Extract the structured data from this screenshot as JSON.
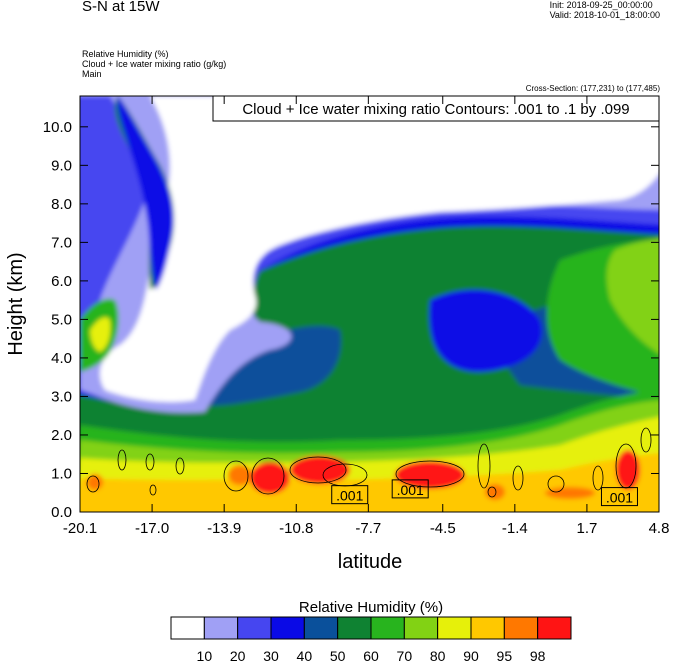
{
  "header": {
    "title": "S-N at 15W",
    "init": "Init: 2018-09-25_00:00:00",
    "valid": "Valid: 2018-10-01_18:00:00",
    "field1": "Relative Humidity   (%)",
    "field2": "Cloud + Ice water mixing ratio   (g/kg)",
    "field3": "Main",
    "cross_section": "Cross-Section: (177,231) to (177,485)"
  },
  "chart_data": {
    "type": "heatmap",
    "title": "Cloud + Ice water mixing ratio Contours: .001 to .1 by .099",
    "xlabel": "latitude",
    "ylabel": "Height (km)",
    "x_ticks": [
      "-20.1",
      "-17.0",
      "-13.9",
      "-10.8",
      "-7.7",
      "-4.5",
      "-1.4",
      "1.7",
      "4.8"
    ],
    "x_tick_values": [
      -20.1,
      -17.0,
      -13.9,
      -10.8,
      -7.7,
      -4.5,
      -1.4,
      1.7,
      4.8
    ],
    "y_ticks": [
      "0.0",
      "1.0",
      "2.0",
      "3.0",
      "4.0",
      "5.0",
      "6.0",
      "7.0",
      "8.0",
      "9.0",
      "10.0"
    ],
    "y_tick_values": [
      0,
      1,
      2,
      3,
      4,
      5,
      6,
      7,
      8,
      9,
      10
    ],
    "xlim": [
      -20.1,
      4.8
    ],
    "ylim": [
      0,
      10.8
    ],
    "contour_labels": [
      {
        "text": ".001",
        "x": -8.5,
        "y": 0.45
      },
      {
        "text": ".001",
        "x": -5.9,
        "y": 0.6
      },
      {
        "text": ".001",
        "x": 3.1,
        "y": 0.4
      }
    ],
    "colorbar": {
      "title": "Relative Humidity  (%)",
      "labels": [
        "10",
        "20",
        "30",
        "40",
        "50",
        "60",
        "70",
        "80",
        "90",
        "95",
        "98"
      ],
      "colors": [
        "#ffffff",
        "#a0a0f5",
        "#4646f0",
        "#0a0ae6",
        "#0a509b",
        "#0f8232",
        "#28b41e",
        "#82d214",
        "#e6f00a",
        "#ffc800",
        "#ff7800",
        "#ff1414"
      ]
    }
  }
}
